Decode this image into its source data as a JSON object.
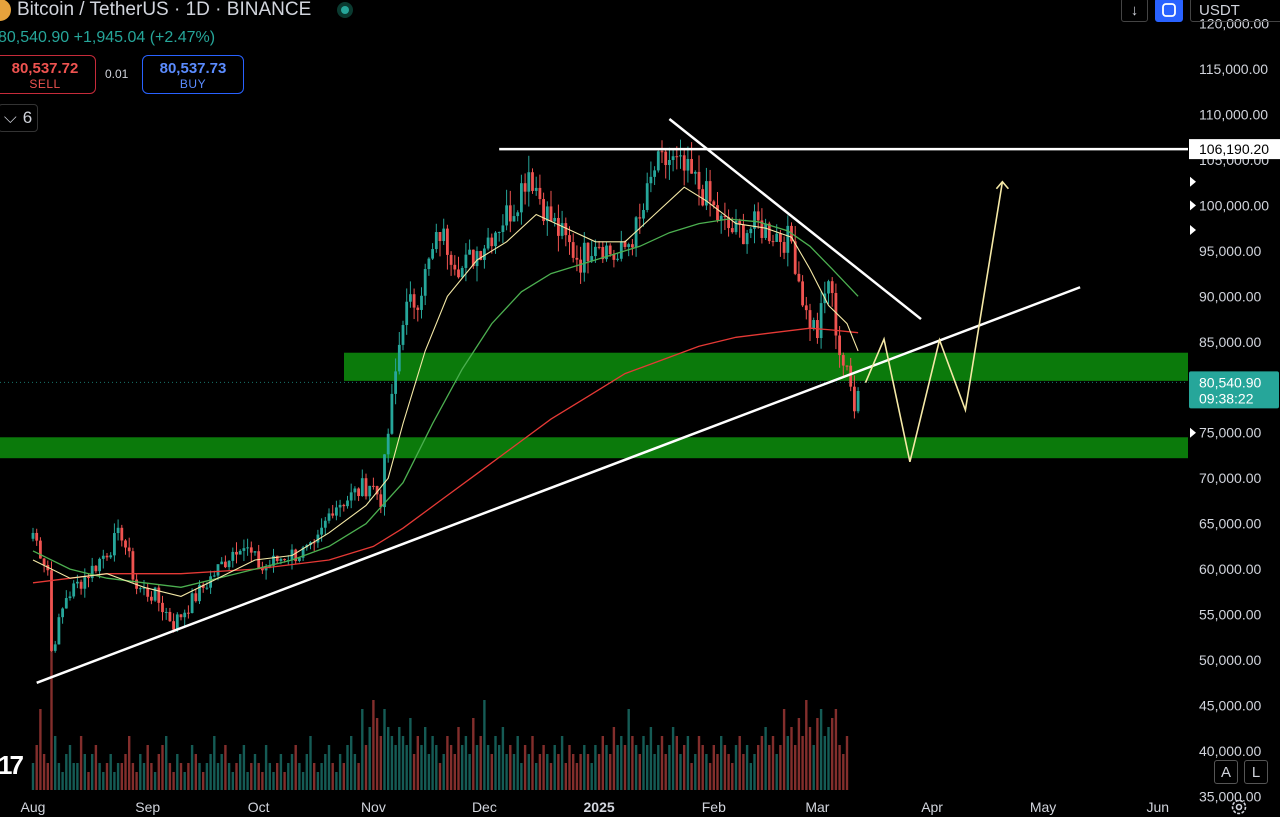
{
  "header": {
    "title": "Bitcoin / TetherUS · 1D · BINANCE",
    "last_price": "80,540.90",
    "change": "+1,945.04 (+2.47%)",
    "sell_price": "80,537.72",
    "sell_label": "SELL",
    "spread": "0.01",
    "buy_price": "80,537.73",
    "buy_label": "BUY",
    "indicator_count": "6"
  },
  "toolbar": {
    "currency": "USDT",
    "auto_label": "A",
    "log_label": "L"
  },
  "colors": {
    "up": "#26a69a",
    "down": "#ef5350",
    "zone": "#0b7a0b",
    "ma_fast": "#f5e9a6",
    "ma_mid": "#4caf50",
    "ma_slow": "#e53935",
    "accent": "#2962ff"
  },
  "chart_data": {
    "type": "candlestick",
    "symbol": "Bitcoin / TetherUS",
    "interval": "1D",
    "exchange": "BINANCE",
    "ylim": [
      30000,
      122000
    ],
    "y_ticks": [
      "35,000.00",
      "40,000.00",
      "45,000.00",
      "50,000.00",
      "55,000.00",
      "60,000.00",
      "65,000.00",
      "70,000.00",
      "75,000.00",
      "80,000.00",
      "85,000.00",
      "90,000.00",
      "95,000.00",
      "100,000.00",
      "105,000.00",
      "110,000.00",
      "115,000.00"
    ],
    "x_ticks": [
      {
        "label": "Aug",
        "day": 0
      },
      {
        "label": "Sep",
        "day": 31
      },
      {
        "label": "Oct",
        "day": 61
      },
      {
        "label": "Nov",
        "day": 92
      },
      {
        "label": "Dec",
        "day": 122
      },
      {
        "label": "2025",
        "day": 153
      },
      {
        "label": "Feb",
        "day": 184
      },
      {
        "label": "Mar",
        "day": 212
      },
      {
        "label": "Apr",
        "day": 243
      },
      {
        "label": "May",
        "day": 273
      },
      {
        "label": "Jun",
        "day": 304
      }
    ],
    "x_start": "2024-08-01",
    "price_path": [
      [
        0,
        64000
      ],
      [
        4,
        60000
      ],
      [
        5,
        51000
      ],
      [
        9,
        57000
      ],
      [
        16,
        60000
      ],
      [
        24,
        64000
      ],
      [
        28,
        58000
      ],
      [
        33,
        57000
      ],
      [
        38,
        54000
      ],
      [
        42,
        56000
      ],
      [
        48,
        59000
      ],
      [
        56,
        63000
      ],
      [
        62,
        60000
      ],
      [
        68,
        61500
      ],
      [
        76,
        62000
      ],
      [
        81,
        67000
      ],
      [
        86,
        68000
      ],
      [
        91,
        69500
      ],
      [
        94,
        67800
      ],
      [
        96,
        75000
      ],
      [
        100,
        88000
      ],
      [
        104,
        90000
      ],
      [
        110,
        97000
      ],
      [
        116,
        93000
      ],
      [
        124,
        97000
      ],
      [
        130,
        100000
      ],
      [
        134,
        104000
      ],
      [
        139,
        99000
      ],
      [
        144,
        96000
      ],
      [
        148,
        94000
      ],
      [
        152,
        96500
      ],
      [
        158,
        94000
      ],
      [
        164,
        98000
      ],
      [
        168,
        104000
      ],
      [
        172,
        105000
      ],
      [
        178,
        103000
      ],
      [
        182,
        101000
      ],
      [
        186,
        98000
      ],
      [
        190,
        97000
      ],
      [
        196,
        97800
      ],
      [
        201,
        96800
      ],
      [
        205,
        96000
      ],
      [
        209,
        88000
      ],
      [
        212,
        86000
      ],
      [
        215,
        92000
      ],
      [
        218,
        84000
      ],
      [
        222,
        78500
      ],
      [
        223,
        80540
      ]
    ],
    "ma_fast": [
      [
        0,
        61000
      ],
      [
        10,
        59000
      ],
      [
        20,
        59500
      ],
      [
        30,
        58000
      ],
      [
        40,
        57000
      ],
      [
        50,
        59000
      ],
      [
        60,
        61000
      ],
      [
        70,
        61500
      ],
      [
        80,
        64000
      ],
      [
        90,
        67000
      ],
      [
        96,
        70000
      ],
      [
        100,
        76000
      ],
      [
        106,
        84000
      ],
      [
        112,
        90000
      ],
      [
        120,
        94000
      ],
      [
        128,
        96000
      ],
      [
        136,
        99000
      ],
      [
        144,
        97500
      ],
      [
        152,
        96000
      ],
      [
        160,
        96000
      ],
      [
        168,
        99000
      ],
      [
        176,
        102000
      ],
      [
        182,
        100500
      ],
      [
        190,
        98000
      ],
      [
        198,
        97500
      ],
      [
        205,
        96500
      ],
      [
        210,
        93000
      ],
      [
        215,
        89000
      ],
      [
        220,
        87000
      ],
      [
        223,
        84000
      ]
    ],
    "ma_mid": [
      [
        0,
        62000
      ],
      [
        10,
        60000
      ],
      [
        20,
        59000
      ],
      [
        30,
        58500
      ],
      [
        40,
        58000
      ],
      [
        50,
        59000
      ],
      [
        60,
        60000
      ],
      [
        70,
        61000
      ],
      [
        80,
        62500
      ],
      [
        90,
        65000
      ],
      [
        100,
        69500
      ],
      [
        108,
        76000
      ],
      [
        116,
        82000
      ],
      [
        124,
        87000
      ],
      [
        132,
        90500
      ],
      [
        140,
        92500
      ],
      [
        148,
        93500
      ],
      [
        156,
        94500
      ],
      [
        164,
        95500
      ],
      [
        172,
        97000
      ],
      [
        180,
        98000
      ],
      [
        188,
        98500
      ],
      [
        196,
        98200
      ],
      [
        204,
        97200
      ],
      [
        210,
        95500
      ],
      [
        216,
        93000
      ],
      [
        223,
        90000
      ]
    ],
    "ma_slow": [
      [
        0,
        58500
      ],
      [
        20,
        59500
      ],
      [
        40,
        59500
      ],
      [
        60,
        60000
      ],
      [
        80,
        61000
      ],
      [
        92,
        62500
      ],
      [
        100,
        64500
      ],
      [
        110,
        67500
      ],
      [
        120,
        70500
      ],
      [
        130,
        73500
      ],
      [
        140,
        76500
      ],
      [
        150,
        79000
      ],
      [
        160,
        81500
      ],
      [
        170,
        83000
      ],
      [
        180,
        84500
      ],
      [
        190,
        85500
      ],
      [
        200,
        86000
      ],
      [
        210,
        86500
      ],
      [
        216,
        86300
      ],
      [
        223,
        86000
      ]
    ],
    "volume": [
      3,
      5,
      9,
      4,
      3,
      8,
      6,
      3,
      2,
      4,
      5,
      3,
      3,
      6,
      4,
      2,
      4,
      5,
      3,
      2,
      3,
      4,
      2,
      3,
      3,
      4,
      6,
      3,
      2,
      4,
      3,
      5,
      3,
      2,
      4,
      5,
      6,
      3,
      2,
      4,
      3,
      2,
      3,
      5,
      4,
      3,
      2,
      3,
      4,
      6,
      3,
      4,
      5,
      3,
      2,
      3,
      4,
      5,
      2,
      3,
      4,
      3,
      2,
      5,
      3,
      2,
      3,
      4,
      2,
      3,
      4,
      5,
      3,
      2,
      4,
      6,
      3,
      2,
      3,
      4,
      5,
      3,
      2,
      4,
      3,
      5,
      6,
      4,
      3,
      9,
      5,
      7,
      10,
      8,
      6,
      9,
      7,
      6,
      5,
      7,
      6,
      5,
      8,
      4,
      6,
      5,
      7,
      4,
      6,
      5,
      3,
      4,
      6,
      5,
      4,
      7,
      5,
      6,
      4,
      8,
      5,
      6,
      10,
      5,
      4,
      6,
      5,
      7,
      4,
      5,
      4,
      6,
      3,
      5,
      4,
      6,
      3,
      4,
      5,
      4,
      3,
      5,
      4,
      6,
      3,
      5,
      4,
      3,
      4,
      5,
      4,
      3,
      5,
      4,
      6,
      5,
      4,
      7,
      5,
      6,
      5,
      9,
      6,
      5,
      4,
      6,
      5,
      7,
      4,
      5,
      6,
      4,
      5,
      7,
      6,
      4,
      5,
      6,
      3,
      4,
      6,
      5,
      4,
      3,
      5,
      4,
      6,
      5,
      4,
      3,
      5,
      6,
      4,
      5,
      3,
      4,
      5,
      6,
      7,
      5,
      6,
      4,
      5,
      9,
      6,
      7,
      5,
      8,
      6,
      10,
      7,
      5,
      8,
      9,
      6,
      7,
      8,
      9,
      5,
      4,
      6
    ],
    "drawings": {
      "support_trendline": [
        [
          1,
          47500
        ],
        [
          283,
          91000
        ]
      ],
      "resistance_line": [
        [
          126,
          106190
        ],
        [
          304,
          106190
        ]
      ],
      "descending_trendline": [
        [
          172,
          109500
        ],
        [
          240,
          87500
        ]
      ],
      "ma_label_price": "106,190.20",
      "projection": [
        [
          225,
          80500
        ],
        [
          230,
          85300
        ],
        [
          237,
          71800
        ],
        [
          245,
          85200
        ],
        [
          252,
          77500
        ],
        [
          262,
          102600
        ]
      ],
      "zone_upper": [
        80700,
        83800
      ],
      "zone_lower": [
        72200,
        74500
      ]
    },
    "current_price": "80,540.90",
    "countdown": "09:38:22",
    "marker_prices": [
      102600,
      100000,
      97300
    ]
  }
}
